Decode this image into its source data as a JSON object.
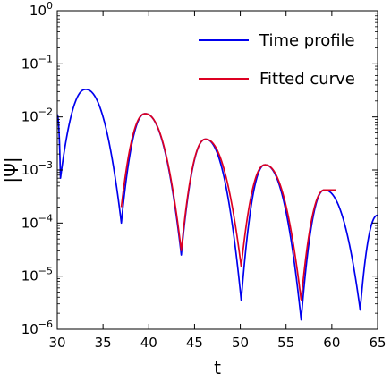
{
  "chart_data": {
    "type": "line",
    "xlabel": "t",
    "ylabel": "|Ψ|",
    "yscale": "log",
    "xlim": [
      30,
      65
    ],
    "ylim": [
      1e-06,
      1
    ],
    "grid": false,
    "legend_placement": "top-right",
    "xticks": [
      30,
      35,
      40,
      45,
      50,
      55,
      60,
      65
    ],
    "x_tick_labels": [
      "30",
      "35",
      "40",
      "45",
      "50",
      "55",
      "60",
      "65"
    ],
    "yticks": [
      1,
      0.1,
      0.01,
      0.001,
      0.0001,
      1e-05,
      1e-06
    ],
    "y_tick_labels": [
      {
        "base": "10",
        "exp": "0"
      },
      {
        "base": "10",
        "exp": "−1"
      },
      {
        "base": "10",
        "exp": "−2"
      },
      {
        "base": "10",
        "exp": "−3"
      },
      {
        "base": "10",
        "exp": "−4"
      },
      {
        "base": "10",
        "exp": "−5"
      },
      {
        "base": "10",
        "exp": "−6"
      }
    ],
    "series": [
      {
        "name": "Time profile",
        "color": "#0000ee",
        "x_start": 30,
        "x_end": 65,
        "lobes": [
          {
            "from": 30.0,
            "to": 30.35,
            "peak_at": 30.0,
            "peak": 0.011
          },
          {
            "from": 30.35,
            "to": 37.0,
            "peak_at": 33.1,
            "peak": 0.033
          },
          {
            "from": 37.0,
            "to": 43.55,
            "peak_at": 39.6,
            "peak": 0.0115
          },
          {
            "from": 43.55,
            "to": 50.1,
            "peak_at": 46.2,
            "peak": 0.0038
          },
          {
            "from": 50.1,
            "to": 56.65,
            "peak_at": 52.7,
            "peak": 0.00125
          },
          {
            "from": 56.65,
            "to": 63.1,
            "peak_at": 59.2,
            "peak": 0.00042
          },
          {
            "from": 63.1,
            "to": 65.0,
            "peak_at": 65.0,
            "peak": 0.00014
          }
        ],
        "minima": [
          {
            "t": 30.35,
            "value": 0.0007
          },
          {
            "t": 37.0,
            "value": 0.0001
          },
          {
            "t": 43.55,
            "value": 2.5e-05
          },
          {
            "t": 50.1,
            "value": 3.5e-06
          },
          {
            "t": 56.65,
            "value": 1.5e-06
          },
          {
            "t": 63.1,
            "value": 2.3e-06
          }
        ]
      },
      {
        "name": "Fitted curve",
        "color": "#dd0022",
        "x_start": 37,
        "x_end": 60.5,
        "lobes": [
          {
            "from": 37.0,
            "to": 43.55,
            "peak_at": 39.6,
            "peak": 0.0115
          },
          {
            "from": 43.55,
            "to": 50.1,
            "peak_at": 46.2,
            "peak": 0.0038
          },
          {
            "from": 50.1,
            "to": 56.65,
            "peak_at": 52.7,
            "peak": 0.00125
          },
          {
            "from": 56.65,
            "to": 63.1,
            "peak_at": 59.2,
            "peak": 0.00042
          }
        ],
        "minima": [
          {
            "t": 37.0,
            "value": 0.0002
          },
          {
            "t": 43.55,
            "value": 3e-05
          },
          {
            "t": 50.1,
            "value": 1.5e-05
          },
          {
            "t": 56.65,
            "value": 3.5e-06
          }
        ]
      }
    ]
  }
}
